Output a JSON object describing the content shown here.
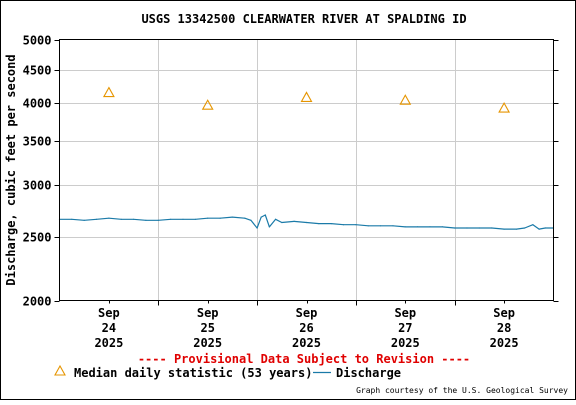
{
  "chart_data": {
    "type": "line",
    "title": "USGS 13342500 CLEARWATER RIVER AT SPALDING ID",
    "ylabel": "Discharge, cubic feet per second",
    "xlabel": "",
    "y_scale": "log",
    "ylim": [
      2000,
      5000
    ],
    "y_ticks": [
      2000,
      2500,
      3000,
      3500,
      4000,
      4500,
      5000
    ],
    "y_tick_labels": [
      "2000",
      "2500",
      "3000",
      "3500",
      "4000",
      "4500",
      "5000"
    ],
    "xlim": [
      "2025-09-23 12:00",
      "2025-09-28 12:00"
    ],
    "x_ticks": [
      {
        "date": "2025-09-24",
        "month": "Sep",
        "day": "24",
        "year": "2025"
      },
      {
        "date": "2025-09-25",
        "month": "Sep",
        "day": "25",
        "year": "2025"
      },
      {
        "date": "2025-09-26",
        "month": "Sep",
        "day": "26",
        "year": "2025"
      },
      {
        "date": "2025-09-27",
        "month": "Sep",
        "day": "27",
        "year": "2025"
      },
      {
        "date": "2025-09-28",
        "month": "Sep",
        "day": "28",
        "year": "2025"
      }
    ],
    "grid": true,
    "legend_placement": "bottom",
    "series": [
      {
        "name": "Median daily statistic (53 years)",
        "kind": "marker",
        "marker": "triangle",
        "color": "#e69500",
        "points": [
          {
            "x": "2025-09-24 00:00",
            "y": 4150
          },
          {
            "x": "2025-09-25 00:00",
            "y": 3970
          },
          {
            "x": "2025-09-26 00:00",
            "y": 4080
          },
          {
            "x": "2025-09-27 00:00",
            "y": 4040
          },
          {
            "x": "2025-09-28 00:00",
            "y": 3930
          }
        ]
      },
      {
        "name": "Discharge",
        "kind": "line",
        "color": "#1a7aa8",
        "points": [
          {
            "x": "2025-09-23 12:00",
            "y": 2660
          },
          {
            "x": "2025-09-23 15:00",
            "y": 2660
          },
          {
            "x": "2025-09-23 18:00",
            "y": 2650
          },
          {
            "x": "2025-09-23 21:00",
            "y": 2660
          },
          {
            "x": "2025-09-24 00:00",
            "y": 2670
          },
          {
            "x": "2025-09-24 03:00",
            "y": 2660
          },
          {
            "x": "2025-09-24 06:00",
            "y": 2660
          },
          {
            "x": "2025-09-24 09:00",
            "y": 2650
          },
          {
            "x": "2025-09-24 12:00",
            "y": 2650
          },
          {
            "x": "2025-09-24 15:00",
            "y": 2660
          },
          {
            "x": "2025-09-24 18:00",
            "y": 2660
          },
          {
            "x": "2025-09-24 21:00",
            "y": 2660
          },
          {
            "x": "2025-09-25 00:00",
            "y": 2670
          },
          {
            "x": "2025-09-25 03:00",
            "y": 2670
          },
          {
            "x": "2025-09-25 06:00",
            "y": 2680
          },
          {
            "x": "2025-09-25 09:00",
            "y": 2670
          },
          {
            "x": "2025-09-25 10:30",
            "y": 2650
          },
          {
            "x": "2025-09-25 12:00",
            "y": 2580
          },
          {
            "x": "2025-09-25 13:00",
            "y": 2680
          },
          {
            "x": "2025-09-25 14:00",
            "y": 2700
          },
          {
            "x": "2025-09-25 15:00",
            "y": 2590
          },
          {
            "x": "2025-09-25 16:30",
            "y": 2660
          },
          {
            "x": "2025-09-25 18:00",
            "y": 2630
          },
          {
            "x": "2025-09-25 21:00",
            "y": 2640
          },
          {
            "x": "2025-09-26 00:00",
            "y": 2630
          },
          {
            "x": "2025-09-26 03:00",
            "y": 2620
          },
          {
            "x": "2025-09-26 06:00",
            "y": 2620
          },
          {
            "x": "2025-09-26 09:00",
            "y": 2610
          },
          {
            "x": "2025-09-26 12:00",
            "y": 2610
          },
          {
            "x": "2025-09-26 15:00",
            "y": 2600
          },
          {
            "x": "2025-09-26 18:00",
            "y": 2600
          },
          {
            "x": "2025-09-26 21:00",
            "y": 2600
          },
          {
            "x": "2025-09-27 00:00",
            "y": 2590
          },
          {
            "x": "2025-09-27 03:00",
            "y": 2590
          },
          {
            "x": "2025-09-27 06:00",
            "y": 2590
          },
          {
            "x": "2025-09-27 09:00",
            "y": 2590
          },
          {
            "x": "2025-09-27 12:00",
            "y": 2580
          },
          {
            "x": "2025-09-27 15:00",
            "y": 2580
          },
          {
            "x": "2025-09-27 18:00",
            "y": 2580
          },
          {
            "x": "2025-09-27 21:00",
            "y": 2580
          },
          {
            "x": "2025-09-28 00:00",
            "y": 2570
          },
          {
            "x": "2025-09-28 03:00",
            "y": 2570
          },
          {
            "x": "2025-09-28 05:00",
            "y": 2580
          },
          {
            "x": "2025-09-28 07:00",
            "y": 2610
          },
          {
            "x": "2025-09-28 08:30",
            "y": 2570
          },
          {
            "x": "2025-09-28 10:00",
            "y": 2580
          },
          {
            "x": "2025-09-28 12:00",
            "y": 2580
          }
        ]
      }
    ],
    "annotations": {
      "provisional": "---- Provisional Data Subject to Revision ----",
      "credit": "Graph courtesy of the U.S. Geological Survey"
    }
  },
  "colors": {
    "background": "#ffffff",
    "grid": "#cccccc",
    "axis": "#000000",
    "provisional": "#e00000"
  }
}
